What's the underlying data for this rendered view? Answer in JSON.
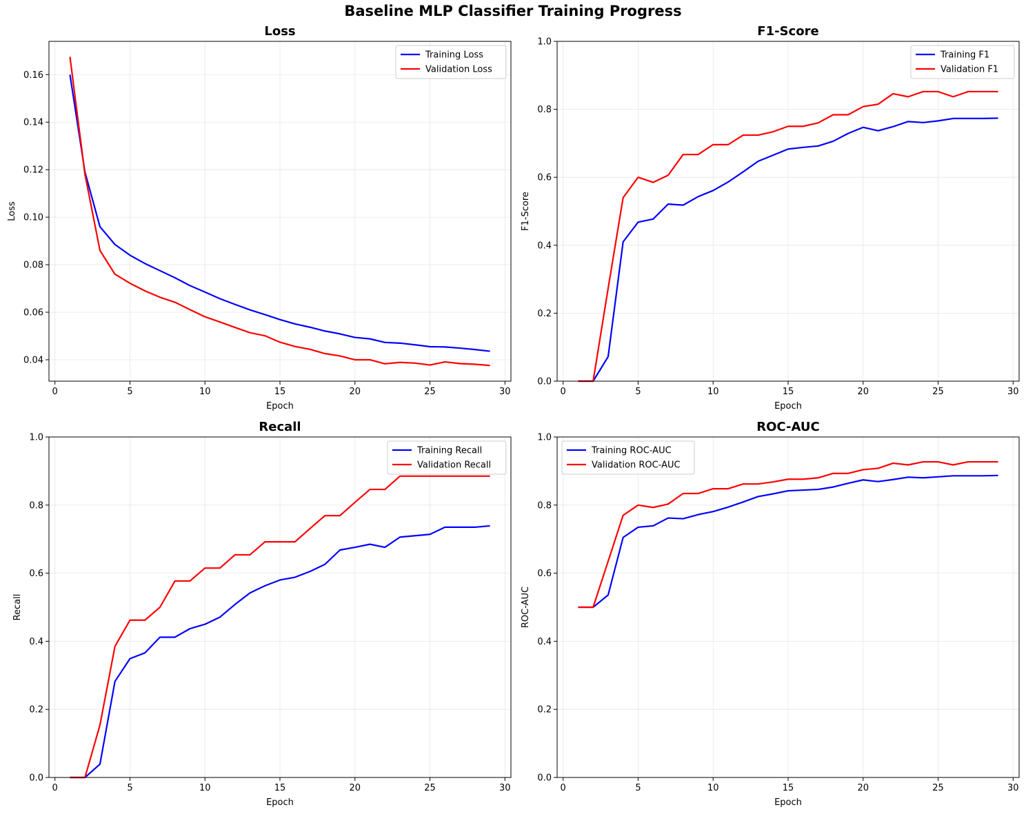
{
  "figure": {
    "title": "Baseline MLP Classifier Training Progress"
  },
  "chart_data": [
    {
      "type": "line",
      "title": "Loss",
      "xlabel": "Epoch",
      "ylabel": "Loss",
      "xlim": [
        -0.4,
        30.4
      ],
      "ylim": [
        0.031,
        0.174
      ],
      "xticks": [
        0,
        5,
        10,
        15,
        20,
        25,
        30
      ],
      "yticks": [
        0.04,
        0.06,
        0.08,
        0.1,
        0.12,
        0.14,
        0.16
      ],
      "ytick_labels": [
        "0.04",
        "0.06",
        "0.08",
        "0.10",
        "0.12",
        "0.14",
        "0.16"
      ],
      "grid": true,
      "legend_position": "upper right",
      "x": [
        1,
        2,
        3,
        4,
        5,
        6,
        7,
        8,
        9,
        10,
        11,
        12,
        13,
        14,
        15,
        16,
        17,
        18,
        19,
        20,
        21,
        22,
        23,
        24,
        25,
        26,
        27,
        28,
        29
      ],
      "series": [
        {
          "name": "Training Loss",
          "color": "#0000ff",
          "values": [
            0.16,
            0.119,
            0.096,
            0.0885,
            0.084,
            0.0805,
            0.0775,
            0.0745,
            0.0712,
            0.0685,
            0.0657,
            0.0633,
            0.061,
            0.059,
            0.0569,
            0.0551,
            0.0537,
            0.0521,
            0.0509,
            0.0494,
            0.0488,
            0.0473,
            0.047,
            0.0463,
            0.0455,
            0.0454,
            0.0449,
            0.0443,
            0.0436
          ]
        },
        {
          "name": "Validation Loss",
          "color": "#ff0000",
          "values": [
            0.1675,
            0.118,
            0.086,
            0.076,
            0.0722,
            0.069,
            0.0663,
            0.0642,
            0.0611,
            0.0581,
            0.0559,
            0.0536,
            0.0514,
            0.0501,
            0.0474,
            0.0456,
            0.0444,
            0.0426,
            0.0416,
            0.04,
            0.04,
            0.0383,
            0.0389,
            0.0386,
            0.0378,
            0.0391,
            0.0384,
            0.0381,
            0.0376
          ]
        }
      ]
    },
    {
      "type": "line",
      "title": "F1-Score",
      "xlabel": "Epoch",
      "ylabel": "F1-Score",
      "xlim": [
        -0.4,
        30.4
      ],
      "ylim": [
        0,
        1
      ],
      "xticks": [
        0,
        5,
        10,
        15,
        20,
        25,
        30
      ],
      "yticks": [
        0,
        0.2,
        0.4,
        0.6,
        0.8,
        1.0
      ],
      "ytick_labels": [
        "0.0",
        "0.2",
        "0.4",
        "0.6",
        "0.8",
        "1.0"
      ],
      "grid": true,
      "legend_position": "upper right",
      "x": [
        1,
        2,
        3,
        4,
        5,
        6,
        7,
        8,
        9,
        10,
        11,
        12,
        13,
        14,
        15,
        16,
        17,
        18,
        19,
        20,
        21,
        22,
        23,
        24,
        25,
        26,
        27,
        28,
        29
      ],
      "series": [
        {
          "name": "Training F1",
          "color": "#0000ff",
          "values": [
            0,
            0,
            0.072,
            0.41,
            0.468,
            0.477,
            0.521,
            0.518,
            0.543,
            0.561,
            0.586,
            0.616,
            0.647,
            0.665,
            0.683,
            0.688,
            0.692,
            0.706,
            0.729,
            0.747,
            0.737,
            0.749,
            0.764,
            0.761,
            0.766,
            0.773,
            0.773,
            0.773,
            0.774
          ]
        },
        {
          "name": "Validation F1",
          "color": "#ff0000",
          "values": [
            0,
            0,
            0.273,
            0.54,
            0.6,
            0.585,
            0.606,
            0.667,
            0.667,
            0.696,
            0.696,
            0.724,
            0.724,
            0.734,
            0.75,
            0.75,
            0.76,
            0.784,
            0.784,
            0.808,
            0.815,
            0.846,
            0.837,
            0.852,
            0.852,
            0.837,
            0.852,
            0.852,
            0.852
          ]
        }
      ]
    },
    {
      "type": "line",
      "title": "Recall",
      "xlabel": "Epoch",
      "ylabel": "Recall",
      "xlim": [
        -0.4,
        30.4
      ],
      "ylim": [
        0,
        1
      ],
      "xticks": [
        0,
        5,
        10,
        15,
        20,
        25,
        30
      ],
      "yticks": [
        0,
        0.2,
        0.4,
        0.6,
        0.8,
        1.0
      ],
      "ytick_labels": [
        "0.0",
        "0.2",
        "0.4",
        "0.6",
        "0.8",
        "1.0"
      ],
      "grid": true,
      "legend_position": "upper right",
      "x": [
        1,
        2,
        3,
        4,
        5,
        6,
        7,
        8,
        9,
        10,
        11,
        12,
        13,
        14,
        15,
        16,
        17,
        18,
        19,
        20,
        21,
        22,
        23,
        24,
        25,
        26,
        27,
        28,
        29
      ],
      "series": [
        {
          "name": "Training Recall",
          "color": "#0000ff",
          "values": [
            0,
            0,
            0.039,
            0.282,
            0.349,
            0.366,
            0.412,
            0.412,
            0.437,
            0.45,
            0.471,
            0.508,
            0.542,
            0.563,
            0.58,
            0.588,
            0.605,
            0.626,
            0.668,
            0.676,
            0.685,
            0.676,
            0.706,
            0.71,
            0.714,
            0.735,
            0.735,
            0.735,
            0.739
          ]
        },
        {
          "name": "Validation Recall",
          "color": "#ff0000",
          "values": [
            0,
            0,
            0.154,
            0.385,
            0.462,
            0.462,
            0.5,
            0.577,
            0.577,
            0.615,
            0.615,
            0.654,
            0.654,
            0.692,
            0.692,
            0.692,
            0.731,
            0.769,
            0.769,
            0.808,
            0.846,
            0.846,
            0.885,
            0.885,
            0.885,
            0.885,
            0.885,
            0.885,
            0.885
          ]
        }
      ]
    },
    {
      "type": "line",
      "title": "ROC-AUC",
      "xlabel": "Epoch",
      "ylabel": "ROC-AUC",
      "xlim": [
        -0.4,
        30.4
      ],
      "ylim": [
        0,
        1
      ],
      "xticks": [
        0,
        5,
        10,
        15,
        20,
        25,
        30
      ],
      "yticks": [
        0,
        0.2,
        0.4,
        0.6,
        0.8,
        1.0
      ],
      "ytick_labels": [
        "0.0",
        "0.2",
        "0.4",
        "0.6",
        "0.8",
        "1.0"
      ],
      "grid": true,
      "legend_position": "upper left",
      "x": [
        1,
        2,
        3,
        4,
        5,
        6,
        7,
        8,
        9,
        10,
        11,
        12,
        13,
        14,
        15,
        16,
        17,
        18,
        19,
        20,
        21,
        22,
        23,
        24,
        25,
        26,
        27,
        28,
        29
      ],
      "series": [
        {
          "name": "Training ROC-AUC",
          "color": "#0000ff",
          "values": [
            0.5,
            0.5,
            0.536,
            0.705,
            0.735,
            0.739,
            0.762,
            0.76,
            0.772,
            0.781,
            0.794,
            0.809,
            0.825,
            0.833,
            0.842,
            0.844,
            0.846,
            0.853,
            0.864,
            0.874,
            0.869,
            0.875,
            0.882,
            0.88,
            0.883,
            0.886,
            0.886,
            0.886,
            0.887
          ]
        },
        {
          "name": "Validation ROC-AUC",
          "color": "#ff0000",
          "values": [
            0.5,
            0.5,
            0.635,
            0.77,
            0.8,
            0.793,
            0.803,
            0.834,
            0.834,
            0.848,
            0.848,
            0.862,
            0.862,
            0.868,
            0.876,
            0.876,
            0.88,
            0.893,
            0.893,
            0.904,
            0.908,
            0.923,
            0.918,
            0.927,
            0.927,
            0.918,
            0.927,
            0.927,
            0.927
          ]
        }
      ]
    }
  ]
}
